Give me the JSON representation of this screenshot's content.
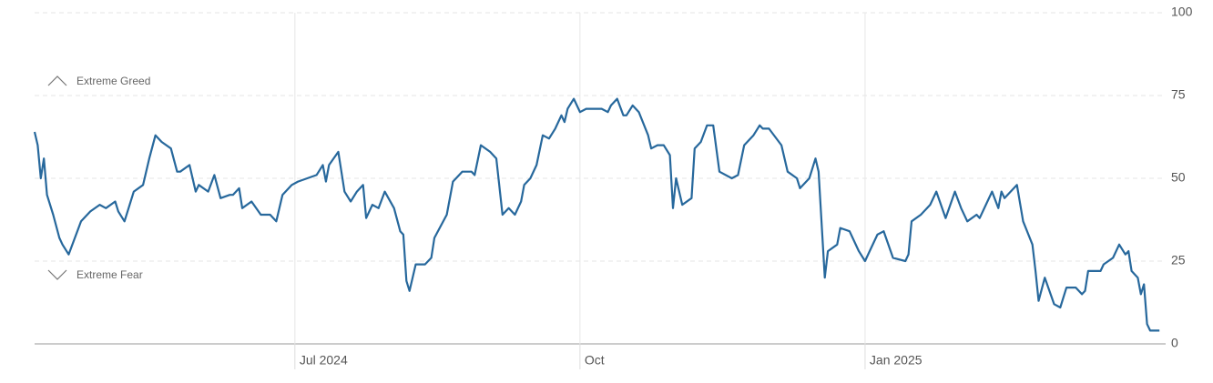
{
  "chart_data": {
    "type": "line",
    "annotations": [
      "Extreme Greed",
      "Extreme Fear"
    ],
    "x": [
      0,
      1,
      2,
      3,
      4,
      6,
      8,
      9,
      11,
      13,
      15,
      18,
      21,
      23,
      26,
      27,
      29,
      32,
      35,
      37,
      39,
      41,
      44,
      46,
      47,
      50,
      52,
      53,
      56,
      58,
      60,
      63,
      64,
      66,
      67,
      70,
      73,
      76,
      78,
      80,
      83,
      85,
      88,
      91,
      93,
      94,
      95,
      98,
      100,
      102,
      104,
      106,
      107,
      109,
      111,
      113,
      116,
      118,
      119,
      120,
      121,
      123,
      126,
      128,
      129,
      133,
      135,
      136,
      138,
      141,
      142,
      144,
      147,
      149,
      151,
      153,
      155,
      157,
      158,
      160,
      162,
      164,
      166,
      168,
      170,
      171,
      172,
      174,
      176,
      178,
      181,
      183,
      185,
      186,
      188,
      190,
      191,
      193,
      195,
      198,
      199,
      201,
      203,
      205,
      206,
      207,
      209,
      212,
      213,
      215,
      217,
      219,
      221,
      225,
      227,
      229,
      232,
      234,
      235,
      237,
      241,
      243,
      246,
      247,
      250,
      252,
      253,
      255,
      256,
      259,
      260,
      263,
      266,
      268,
      270,
      272,
      274,
      277,
      281,
      282,
      283,
      286,
      289,
      291,
      294,
      297,
      299,
      301,
      304,
      305,
      307,
      309,
      311,
      312,
      313,
      317,
      319,
      322,
      323,
      324,
      326,
      329,
      331,
      333,
      336,
      338,
      339,
      340,
      344,
      345,
      348,
      350,
      352,
      353,
      354,
      356,
      357,
      358,
      359,
      360,
      363
    ],
    "values": [
      64,
      60,
      50,
      56,
      45,
      39,
      32,
      30,
      27,
      32,
      37,
      40,
      42,
      41,
      43,
      40,
      37,
      46,
      48,
      56,
      63,
      61,
      59,
      52,
      52,
      54,
      46,
      48,
      46,
      51,
      44,
      45,
      45,
      47,
      41,
      43,
      39,
      39,
      37,
      45,
      48,
      49,
      50,
      51,
      54,
      49,
      54,
      58,
      46,
      43,
      46,
      48,
      38,
      42,
      41,
      46,
      41,
      34,
      33,
      19,
      16,
      24,
      24,
      26,
      32,
      39,
      49,
      50,
      52,
      52,
      51,
      60,
      58,
      56,
      39,
      41,
      39,
      43,
      48,
      50,
      54,
      63,
      62,
      65,
      69,
      67,
      71,
      74,
      70,
      71,
      71,
      71,
      70,
      72,
      74,
      69,
      69,
      72,
      70,
      63,
      59,
      60,
      60,
      57,
      41,
      50,
      42,
      44,
      59,
      61,
      66,
      66,
      52,
      50,
      51,
      60,
      63,
      66,
      65,
      65,
      60,
      52,
      50,
      47,
      50,
      56,
      52,
      20,
      28,
      30,
      35,
      34,
      28,
      25,
      29,
      33,
      34,
      26,
      25,
      27,
      37,
      39,
      42,
      46,
      38,
      46,
      41,
      37,
      39,
      38,
      42,
      46,
      41,
      46,
      44,
      48,
      37,
      30,
      22,
      13,
      20,
      12,
      11,
      17,
      17,
      15,
      16,
      22,
      22,
      24,
      26,
      30,
      27,
      28,
      22,
      20,
      15,
      18,
      6,
      4,
      4
    ],
    "color": "#27689c",
    "xlim": [
      0,
      365
    ],
    "xticks": [
      {
        "value": 84,
        "label": "Jul 2024"
      },
      {
        "value": 176,
        "label": "Oct"
      },
      {
        "value": 268,
        "label": "Jan 2025"
      }
    ],
    "ylim": [
      0,
      100
    ],
    "yticks": [
      0,
      25,
      50,
      75,
      100
    ],
    "grid": true
  }
}
